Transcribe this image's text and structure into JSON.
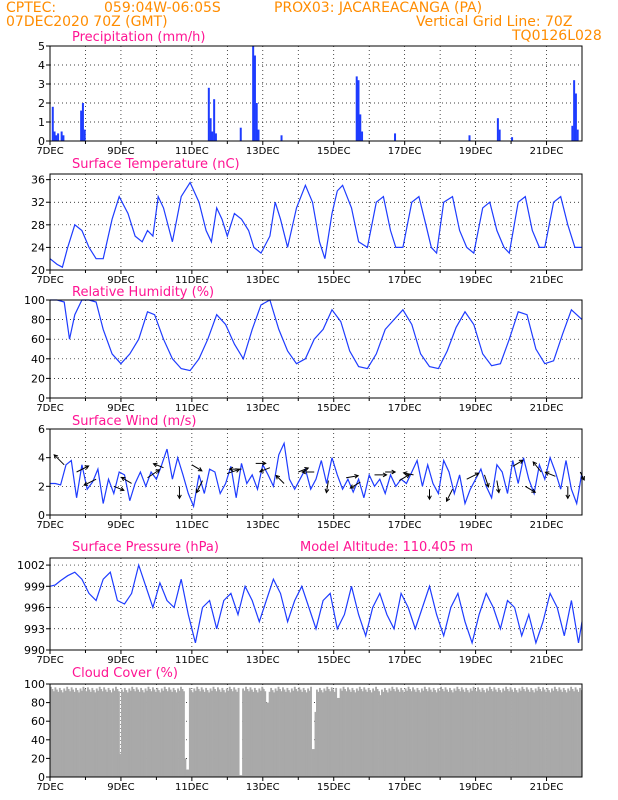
{
  "header": {
    "line1_left": "CPTEC:",
    "coords": "059:04W-06:05S",
    "station": "PROX03: JACAREACANGA (PA)",
    "date": "07DEC2020 70Z (GMT)",
    "grid_note": "Vertical Grid Line: 70Z",
    "code": "TQ0126L028"
  },
  "xaxis": {
    "ticks": [
      "7DEC",
      "9DEC",
      "11DEC",
      "13DEC",
      "15DEC",
      "17DEC",
      "19DEC",
      "21DEC"
    ],
    "days_span": 15
  },
  "colors": {
    "line": "#1e3cff",
    "title": "#ff1493",
    "header": "#ff8c00",
    "cloud": "#a9a9a9"
  },
  "chart_data": [
    {
      "type": "bar",
      "title": "Precipitation (mm/h)",
      "ylim": [
        0,
        5
      ],
      "yticks": [
        "0",
        "1",
        "2",
        "3",
        "4",
        "5"
      ],
      "x_start_day": 7,
      "x_step_hours": 1,
      "bars": [
        {
          "x": 7.05,
          "y": 1.8
        },
        {
          "x": 7.1,
          "y": 0.5
        },
        {
          "x": 7.15,
          "y": 0.3
        },
        {
          "x": 7.2,
          "y": 0.4
        },
        {
          "x": 7.3,
          "y": 0.5
        },
        {
          "x": 7.35,
          "y": 0.3
        },
        {
          "x": 7.85,
          "y": 1.6
        },
        {
          "x": 7.9,
          "y": 2.0
        },
        {
          "x": 7.95,
          "y": 0.6
        },
        {
          "x": 11.45,
          "y": 2.8
        },
        {
          "x": 11.5,
          "y": 1.2
        },
        {
          "x": 11.55,
          "y": 0.5
        },
        {
          "x": 11.6,
          "y": 2.2
        },
        {
          "x": 11.65,
          "y": 0.4
        },
        {
          "x": 12.35,
          "y": 0.7
        },
        {
          "x": 12.7,
          "y": 5.0
        },
        {
          "x": 12.75,
          "y": 4.5
        },
        {
          "x": 12.8,
          "y": 2.0
        },
        {
          "x": 12.85,
          "y": 0.6
        },
        {
          "x": 13.5,
          "y": 0.3
        },
        {
          "x": 15.62,
          "y": 3.4
        },
        {
          "x": 15.67,
          "y": 3.2
        },
        {
          "x": 15.72,
          "y": 1.4
        },
        {
          "x": 15.77,
          "y": 0.5
        },
        {
          "x": 16.7,
          "y": 0.4
        },
        {
          "x": 18.8,
          "y": 0.3
        },
        {
          "x": 19.6,
          "y": 1.2
        },
        {
          "x": 19.65,
          "y": 0.6
        },
        {
          "x": 20.0,
          "y": 0.2
        },
        {
          "x": 21.7,
          "y": 0.8
        },
        {
          "x": 21.75,
          "y": 3.2
        },
        {
          "x": 21.8,
          "y": 2.5
        },
        {
          "x": 21.85,
          "y": 0.6
        }
      ]
    },
    {
      "type": "line",
      "title": "Surface Temperature (nC)",
      "ylim": [
        20,
        37
      ],
      "yticks": [
        "20",
        "24",
        "28",
        "32",
        "36"
      ],
      "x": [
        7.0,
        7.2,
        7.35,
        7.5,
        7.7,
        7.9,
        8.1,
        8.3,
        8.5,
        8.75,
        8.95,
        9.2,
        9.4,
        9.6,
        9.75,
        9.9,
        10.05,
        10.2,
        10.45,
        10.7,
        10.95,
        11.2,
        11.4,
        11.55,
        11.7,
        11.85,
        12.0,
        12.2,
        12.4,
        12.6,
        12.75,
        12.95,
        13.2,
        13.35,
        13.5,
        13.7,
        13.95,
        14.2,
        14.4,
        14.6,
        14.75,
        14.95,
        15.1,
        15.25,
        15.5,
        15.7,
        15.95,
        16.2,
        16.4,
        16.6,
        16.75,
        16.95,
        17.2,
        17.4,
        17.6,
        17.75,
        17.9,
        18.1,
        18.35,
        18.55,
        18.75,
        18.95,
        19.2,
        19.4,
        19.6,
        19.8,
        19.95,
        20.2,
        20.4,
        20.6,
        20.8,
        20.95,
        21.2,
        21.4,
        21.6,
        21.8,
        22.0
      ],
      "y": [
        22,
        21,
        20.5,
        24,
        28,
        27,
        24,
        22,
        22,
        29,
        33,
        30,
        26,
        25,
        27,
        26,
        33,
        31,
        25,
        33,
        35.5,
        32,
        27,
        25,
        31,
        29,
        26,
        30,
        29,
        27,
        24,
        23,
        26,
        32,
        29,
        24,
        31,
        35,
        32,
        25,
        22,
        30,
        34,
        35,
        31,
        25,
        24,
        32,
        33,
        27,
        24,
        24,
        32,
        33,
        28,
        24,
        23,
        32,
        33,
        27,
        24,
        23,
        31,
        32,
        27,
        24,
        23,
        32,
        33,
        27,
        24,
        24,
        32,
        33,
        28,
        24,
        24
      ]
    },
    {
      "type": "line",
      "title": "Relative Humidity (%)",
      "ylim": [
        0,
        100
      ],
      "yticks": [
        "0",
        "20",
        "40",
        "60",
        "80",
        "100"
      ],
      "x": [
        7.0,
        7.2,
        7.4,
        7.55,
        7.7,
        7.9,
        8.1,
        8.3,
        8.5,
        8.75,
        9.0,
        9.25,
        9.5,
        9.75,
        9.95,
        10.2,
        10.45,
        10.7,
        10.95,
        11.2,
        11.45,
        11.7,
        11.95,
        12.2,
        12.45,
        12.7,
        12.95,
        13.2,
        13.45,
        13.7,
        13.95,
        14.2,
        14.45,
        14.7,
        14.95,
        15.2,
        15.45,
        15.7,
        15.95,
        16.2,
        16.45,
        16.7,
        16.95,
        17.2,
        17.45,
        17.7,
        17.95,
        18.2,
        18.45,
        18.7,
        18.95,
        19.2,
        19.45,
        19.7,
        19.95,
        20.2,
        20.45,
        20.7,
        20.95,
        21.2,
        21.45,
        21.7,
        22.0
      ],
      "y": [
        100,
        100,
        98,
        60,
        85,
        100,
        100,
        98,
        70,
        45,
        35,
        45,
        60,
        88,
        85,
        60,
        40,
        30,
        28,
        40,
        60,
        85,
        75,
        55,
        40,
        70,
        95,
        100,
        70,
        48,
        35,
        40,
        60,
        70,
        90,
        78,
        48,
        32,
        30,
        45,
        70,
        80,
        90,
        75,
        45,
        32,
        30,
        48,
        72,
        88,
        75,
        45,
        33,
        35,
        60,
        88,
        85,
        50,
        35,
        38,
        65,
        90,
        80
      ]
    },
    {
      "type": "line",
      "title": "Surface Wind (m/s)",
      "ylim": [
        0,
        6
      ],
      "yticks": [
        "0",
        "2",
        "4",
        "6"
      ],
      "x": [
        7.0,
        7.15,
        7.3,
        7.45,
        7.6,
        7.75,
        7.9,
        8.05,
        8.2,
        8.35,
        8.5,
        8.65,
        8.8,
        8.95,
        9.1,
        9.25,
        9.4,
        9.55,
        9.7,
        9.85,
        10.0,
        10.15,
        10.3,
        10.45,
        10.6,
        10.75,
        10.9,
        11.05,
        11.2,
        11.35,
        11.5,
        11.65,
        11.8,
        11.95,
        12.1,
        12.25,
        12.4,
        12.55,
        12.7,
        12.85,
        13.0,
        13.15,
        13.3,
        13.45,
        13.6,
        13.75,
        13.9,
        14.05,
        14.2,
        14.35,
        14.5,
        14.65,
        14.8,
        14.95,
        15.1,
        15.25,
        15.4,
        15.55,
        15.7,
        15.85,
        16.0,
        16.15,
        16.3,
        16.45,
        16.6,
        16.75,
        16.9,
        17.05,
        17.2,
        17.35,
        17.5,
        17.65,
        17.8,
        17.95,
        18.1,
        18.25,
        18.4,
        18.55,
        18.7,
        18.85,
        19.0,
        19.15,
        19.3,
        19.45,
        19.6,
        19.75,
        19.9,
        20.05,
        20.2,
        20.35,
        20.5,
        20.65,
        20.8,
        20.95,
        21.1,
        21.25,
        21.4,
        21.55,
        21.7,
        21.85,
        22.0
      ],
      "y": [
        2.2,
        2.2,
        2.1,
        3.5,
        3.8,
        1.2,
        3.5,
        1.8,
        2.3,
        3.2,
        0.8,
        2.5,
        1.5,
        3.0,
        2.8,
        1.0,
        2.2,
        3.0,
        2.0,
        3.0,
        2.5,
        3.5,
        4.6,
        2.5,
        4.0,
        2.8,
        1.5,
        0.6,
        2.8,
        1.5,
        3.2,
        3.0,
        1.5,
        2.2,
        3.4,
        1.2,
        3.6,
        2.2,
        2.8,
        1.8,
        3.5,
        2.8,
        2.0,
        4.2,
        5.0,
        2.5,
        1.8,
        2.5,
        3.2,
        1.8,
        2.5,
        3.8,
        2.2,
        4.0,
        2.8,
        1.8,
        2.5,
        1.6,
        2.5,
        1.2,
        2.8,
        2.0,
        2.5,
        1.5,
        2.8,
        2.0,
        2.5,
        2.2,
        3.0,
        3.8,
        2.0,
        3.5,
        2.2,
        1.5,
        3.8,
        3.0,
        1.5,
        2.8,
        0.8,
        1.8,
        2.5,
        3.2,
        2.0,
        1.2,
        3.5,
        3.0,
        1.5,
        3.8,
        2.2,
        4.0,
        2.5,
        1.5,
        3.5,
        2.5,
        4.0,
        3.0,
        1.8,
        3.8,
        1.8,
        0.8,
        3.0
      ]
    },
    {
      "type": "line",
      "title": "Surface Pressure (hPa)",
      "subtitle": "Model Altitude: 110.405 m",
      "ylim": [
        990,
        1003
      ],
      "yticks": [
        "990",
        "993",
        "996",
        "999",
        "1002"
      ],
      "x": [
        7.0,
        7.15,
        7.3,
        7.5,
        7.7,
        7.9,
        8.1,
        8.3,
        8.5,
        8.7,
        8.9,
        9.1,
        9.3,
        9.5,
        9.7,
        9.9,
        10.1,
        10.3,
        10.5,
        10.7,
        10.9,
        11.1,
        11.3,
        11.5,
        11.7,
        11.9,
        12.1,
        12.3,
        12.5,
        12.7,
        12.9,
        13.1,
        13.3,
        13.5,
        13.7,
        13.9,
        14.1,
        14.3,
        14.5,
        14.7,
        14.9,
        15.1,
        15.3,
        15.5,
        15.7,
        15.9,
        16.1,
        16.3,
        16.5,
        16.7,
        16.9,
        17.1,
        17.3,
        17.5,
        17.7,
        17.9,
        18.1,
        18.3,
        18.5,
        18.7,
        18.9,
        19.1,
        19.3,
        19.5,
        19.7,
        19.9,
        20.1,
        20.3,
        20.5,
        20.7,
        20.9,
        21.1,
        21.3,
        21.5,
        21.7,
        21.9,
        22.0
      ],
      "y": [
        999,
        999.2,
        999.8,
        1000.5,
        1001,
        1000,
        998,
        997,
        1000,
        1001,
        997,
        996.5,
        998,
        1002,
        999,
        996,
        999.5,
        997,
        996,
        1000,
        995,
        991,
        996,
        997,
        993,
        997,
        998,
        995,
        999,
        997,
        994,
        997,
        1000,
        998,
        994,
        997,
        999,
        996,
        993,
        997,
        998,
        993,
        995,
        999,
        995,
        992,
        996,
        998,
        995,
        993,
        998,
        996,
        993,
        996,
        999,
        995,
        992,
        996,
        998,
        994,
        991,
        995,
        998,
        996,
        993,
        997,
        996,
        992,
        995,
        991,
        994,
        998,
        996,
        992,
        997,
        991,
        994
      ]
    },
    {
      "type": "bar",
      "title": "Cloud Cover (%)",
      "ylim": [
        0,
        100
      ],
      "yticks": [
        "0",
        "20",
        "40",
        "60",
        "80",
        "100"
      ],
      "baseline": 97,
      "dips": [
        {
          "x": 8.95,
          "y": 25
        },
        {
          "x": 10.85,
          "y": 8
        },
        {
          "x": 10.8,
          "y": 20
        },
        {
          "x": 12.35,
          "y": 2
        },
        {
          "x": 13.1,
          "y": 80
        },
        {
          "x": 14.4,
          "y": 30
        },
        {
          "x": 14.45,
          "y": 70
        },
        {
          "x": 15.1,
          "y": 85
        },
        {
          "x": 16.3,
          "y": 88
        }
      ]
    }
  ]
}
